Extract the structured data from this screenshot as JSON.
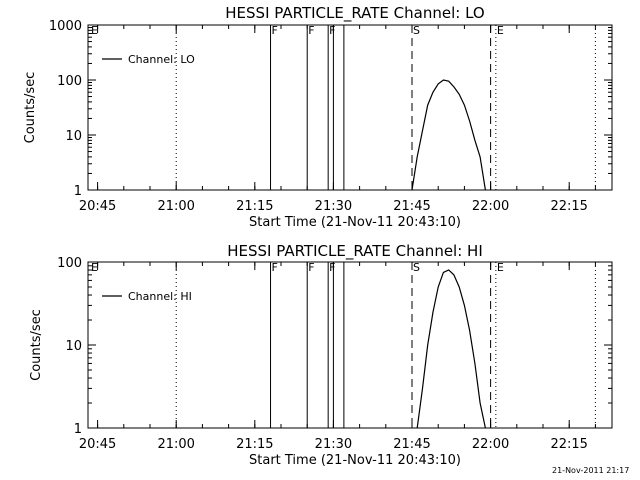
{
  "footer": {
    "timestamp": "21-Nov-2011 21:17"
  },
  "chart_data": [
    {
      "type": "line",
      "title": "HESSI PARTICLE_RATE Channel: LO",
      "xlabel": "Start Time (21-Nov-11 20:43:10)",
      "ylabel": "Counts/sec",
      "yscale": "log",
      "ylim": [
        1,
        1000
      ],
      "xlim_minutes_after_2043_10": [
        0,
        100
      ],
      "x_tick_labels": [
        "20:45",
        "21:00",
        "21:15",
        "21:30",
        "21:45",
        "22:00",
        "22:15"
      ],
      "y_tick_labels": [
        "1",
        "10",
        "100",
        "1000"
      ],
      "legend": {
        "position": "upper-left",
        "entries": [
          "Channel: LO"
        ]
      },
      "markers": [
        {
          "label": "E",
          "time": "20:43",
          "style": "none"
        },
        {
          "label": "",
          "time": "21:00",
          "style": "dotted"
        },
        {
          "label": "F",
          "time": "21:18",
          "style": "solid"
        },
        {
          "label": "F",
          "time": "21:25",
          "style": "solid"
        },
        {
          "label": "F",
          "time": "21:29",
          "style": "solid"
        },
        {
          "label": "",
          "time": "21:30",
          "style": "solid"
        },
        {
          "label": "",
          "time": "21:32",
          "style": "solid"
        },
        {
          "label": "S",
          "time": "21:45",
          "style": "dashed"
        },
        {
          "label": "",
          "time": "22:00",
          "style": "dashed"
        },
        {
          "label": "E",
          "time": "22:01",
          "style": "dotted"
        },
        {
          "label": "",
          "time": "22:20",
          "style": "dotted"
        }
      ],
      "series": [
        {
          "name": "Channel: LO",
          "x": [
            "21:45",
            "21:46",
            "21:47",
            "21:48",
            "21:49",
            "21:50",
            "21:51",
            "21:52",
            "21:53",
            "21:54",
            "21:55",
            "21:56",
            "21:57",
            "21:58",
            "21:59"
          ],
          "y": [
            1,
            4,
            12,
            35,
            60,
            85,
            100,
            95,
            75,
            55,
            35,
            18,
            8,
            4,
            1
          ]
        }
      ]
    },
    {
      "type": "line",
      "title": "HESSI PARTICLE_RATE Channel: HI",
      "xlabel": "Start Time (21-Nov-11 20:43:10)",
      "ylabel": "Counts/sec",
      "yscale": "log",
      "ylim": [
        1,
        100
      ],
      "xlim_minutes_after_2043_10": [
        0,
        100
      ],
      "x_tick_labels": [
        "20:45",
        "21:00",
        "21:15",
        "21:30",
        "21:45",
        "22:00",
        "22:15"
      ],
      "y_tick_labels": [
        "1",
        "10",
        "100"
      ],
      "legend": {
        "position": "upper-left",
        "entries": [
          "Channel: HI"
        ]
      },
      "markers": [
        {
          "label": "E",
          "time": "20:43",
          "style": "none"
        },
        {
          "label": "",
          "time": "21:00",
          "style": "dotted"
        },
        {
          "label": "F",
          "time": "21:18",
          "style": "solid"
        },
        {
          "label": "F",
          "time": "21:25",
          "style": "solid"
        },
        {
          "label": "F",
          "time": "21:29",
          "style": "solid"
        },
        {
          "label": "",
          "time": "21:30",
          "style": "solid"
        },
        {
          "label": "",
          "time": "21:32",
          "style": "solid"
        },
        {
          "label": "S",
          "time": "21:45",
          "style": "dashed"
        },
        {
          "label": "",
          "time": "22:00",
          "style": "dashed"
        },
        {
          "label": "E",
          "time": "22:01",
          "style": "dotted"
        },
        {
          "label": "",
          "time": "22:20",
          "style": "dotted"
        }
      ],
      "series": [
        {
          "name": "Channel: HI",
          "x": [
            "21:46",
            "21:47",
            "21:48",
            "21:49",
            "21:50",
            "21:51",
            "21:52",
            "21:53",
            "21:54",
            "21:55",
            "21:56",
            "21:57",
            "21:58",
            "21:59"
          ],
          "y": [
            1,
            3,
            10,
            25,
            50,
            75,
            80,
            70,
            50,
            30,
            15,
            6,
            2,
            1
          ]
        }
      ]
    }
  ]
}
